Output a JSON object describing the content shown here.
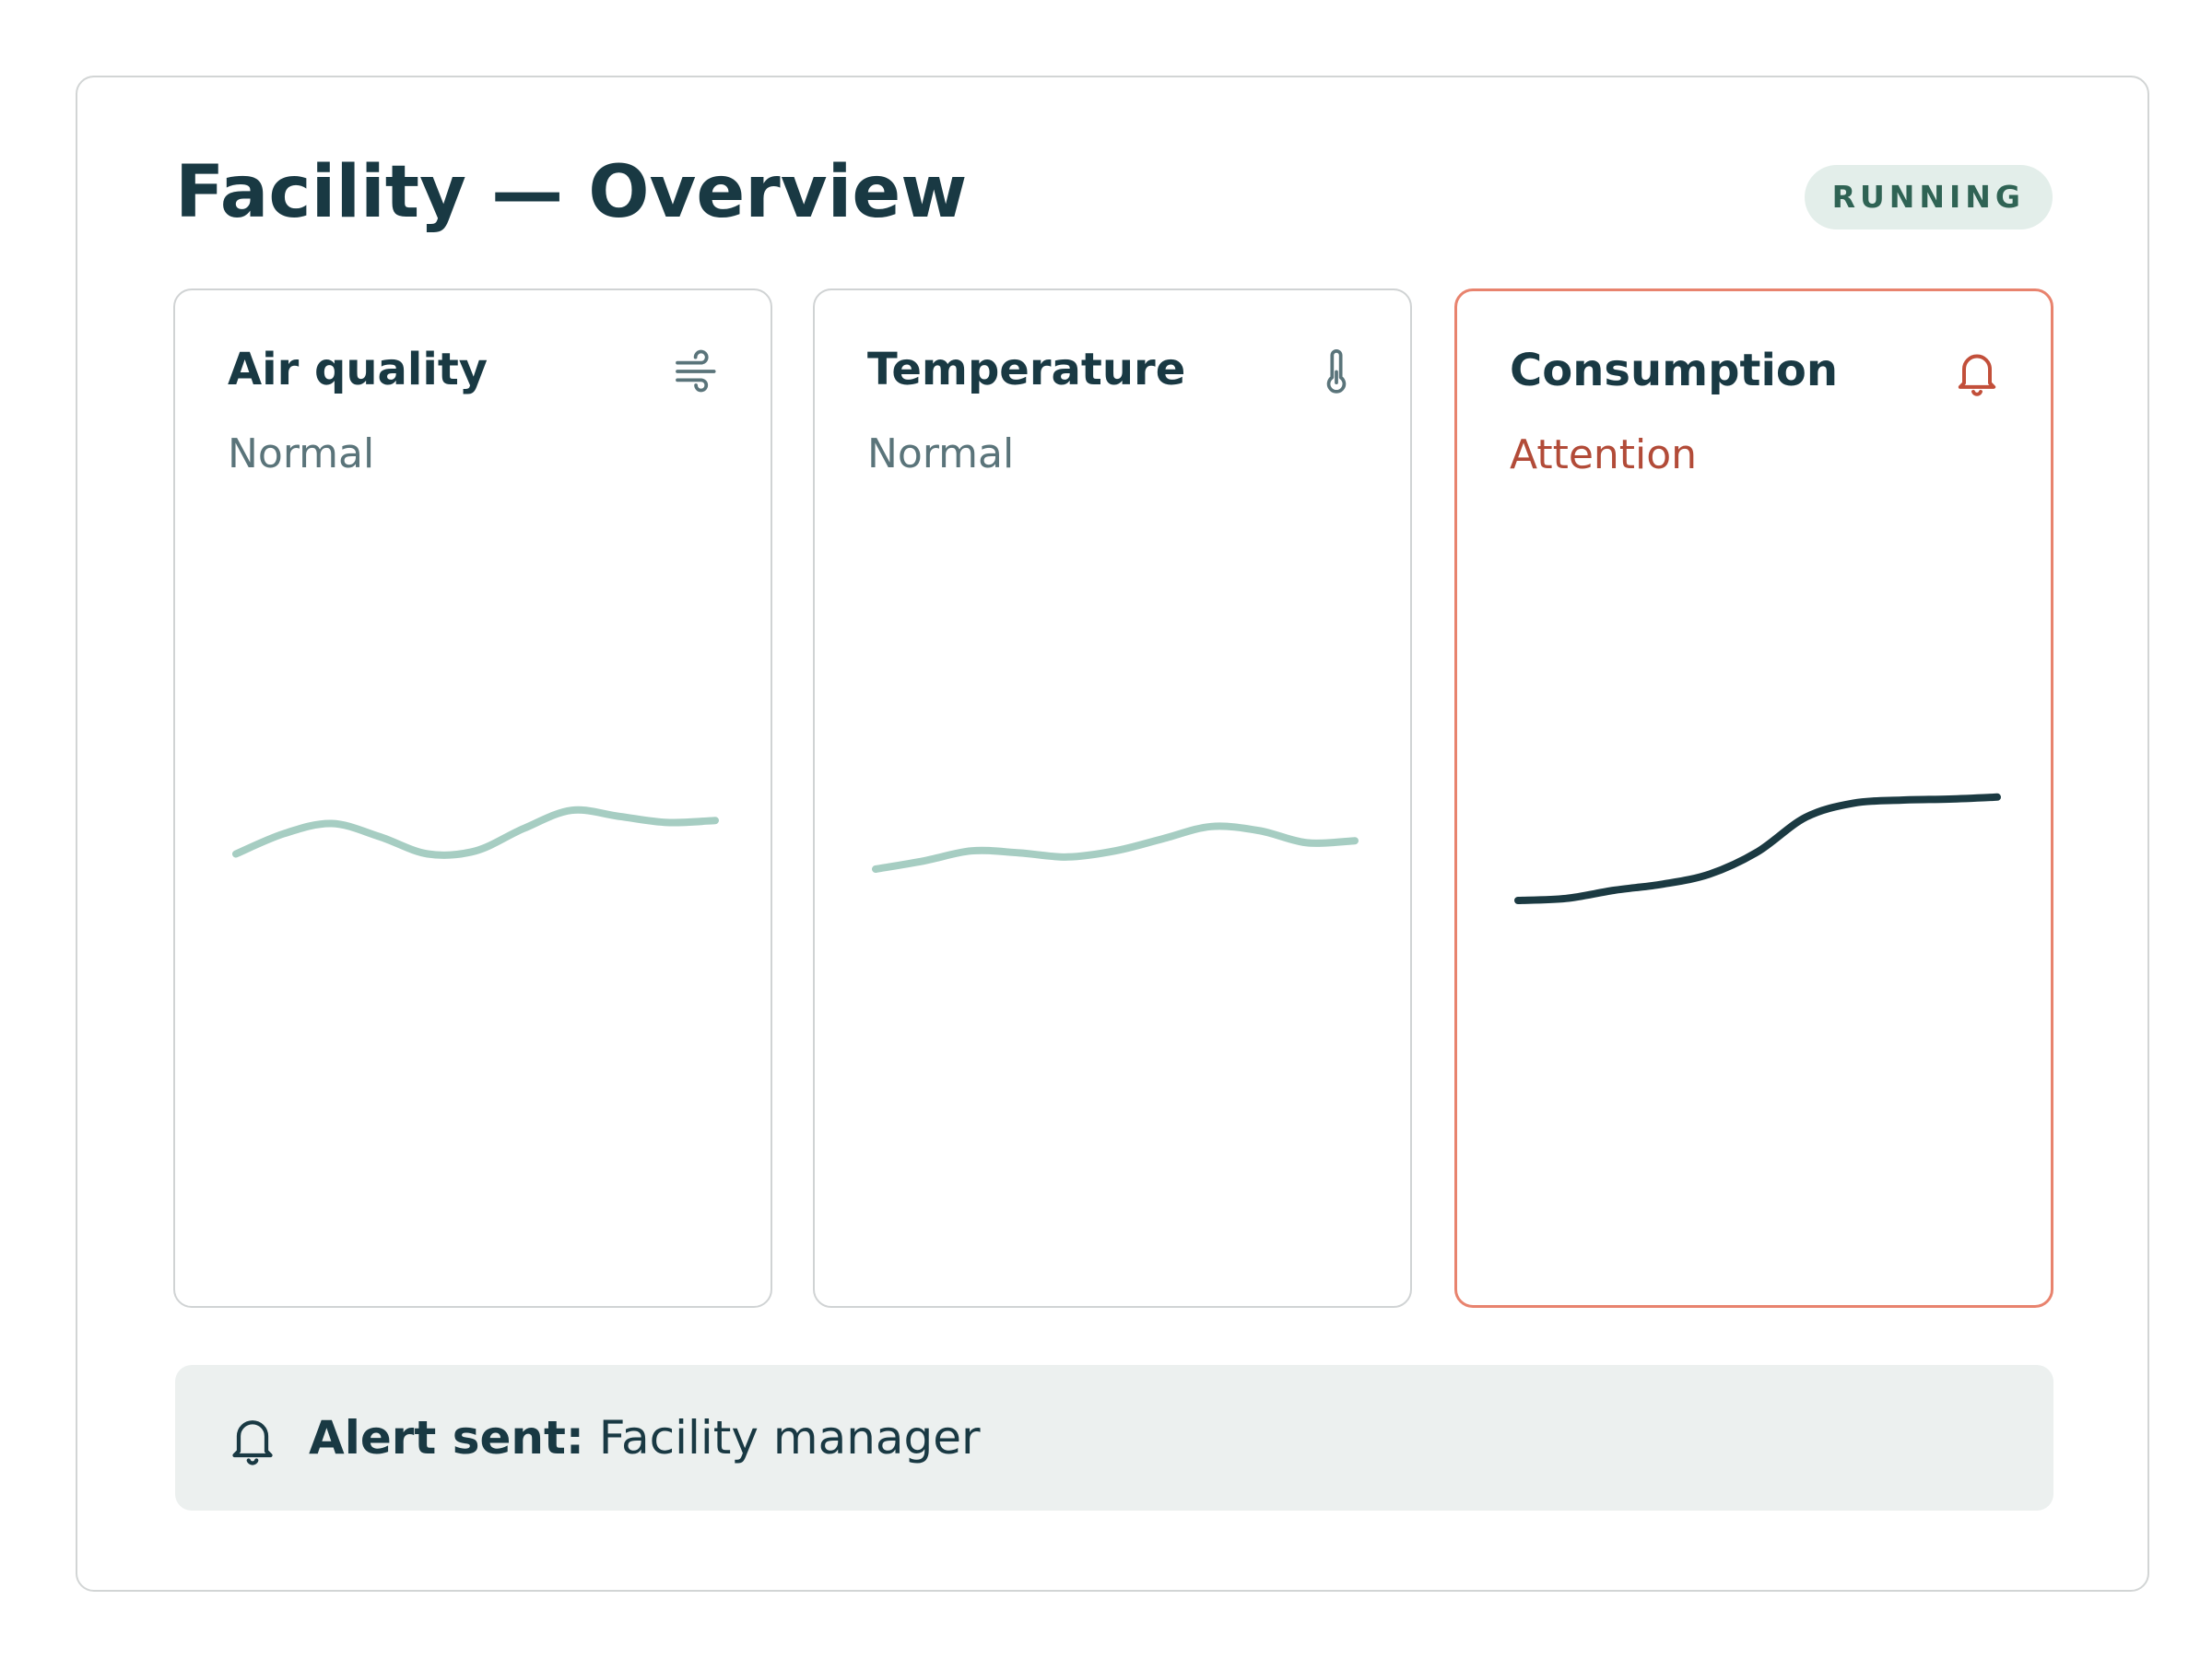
{
  "header": {
    "title": "Facility — Overview",
    "status_badge": "RUNNING"
  },
  "cards": [
    {
      "title": "Air quality",
      "status": "Normal",
      "icon": "wind-icon",
      "state": "normal",
      "trend": [
        0.55,
        0.75,
        0.85,
        0.72,
        0.55,
        0.58,
        0.8,
        0.98,
        0.92,
        0.86,
        0.88
      ],
      "line_color": "#a6cdc2"
    },
    {
      "title": "Temperature",
      "status": "Normal",
      "icon": "thermometer-icon",
      "state": "normal",
      "trend": [
        0.4,
        0.48,
        0.58,
        0.56,
        0.52,
        0.58,
        0.7,
        0.82,
        0.78,
        0.66,
        0.68
      ],
      "line_color": "#a6cdc2"
    },
    {
      "title": "Consumption",
      "status": "Attention",
      "icon": "bell-icon",
      "state": "attention",
      "trend": [
        0.1,
        0.12,
        0.2,
        0.26,
        0.36,
        0.58,
        0.92,
        1.06,
        1.09,
        1.1,
        1.12
      ],
      "line_color": "#1b3a42"
    }
  ],
  "footer": {
    "icon": "bell-icon",
    "label": "Alert sent:",
    "value": "Facility manager"
  },
  "colors": {
    "text_primary": "#193943",
    "text_muted": "#5a747a",
    "accent_alert": "#e8836e",
    "alert_text": "#b24b38",
    "badge_bg": "#e3eeea",
    "badge_text": "#2f6354",
    "footer_bg": "#ecf0ef"
  }
}
